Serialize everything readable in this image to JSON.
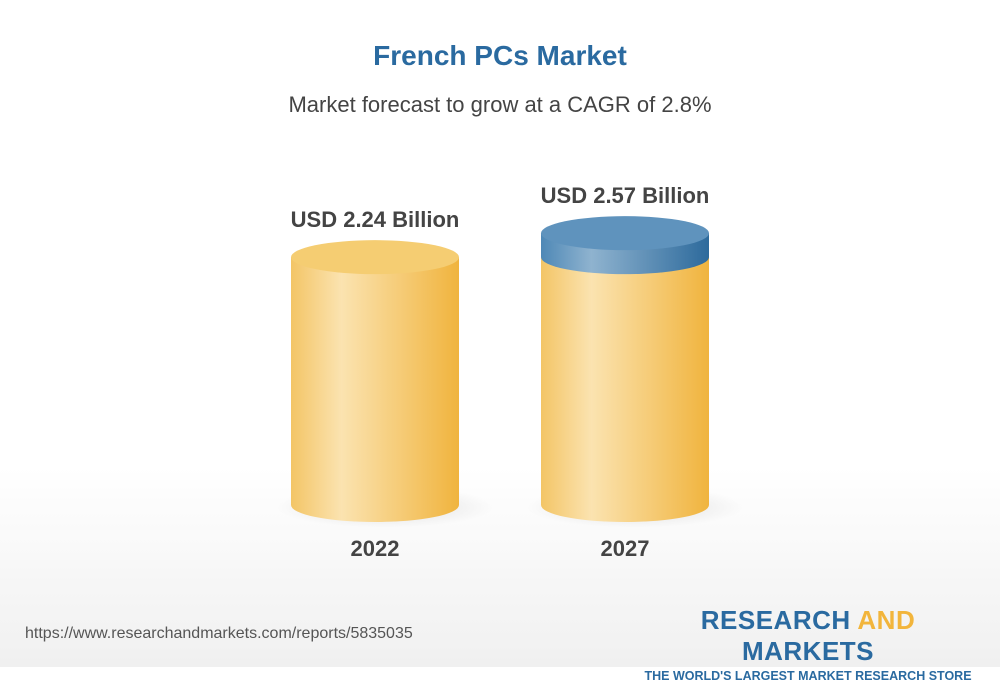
{
  "title": "French PCs Market",
  "subtitle": "Market forecast to grow at a CAGR of 2.8%",
  "chart_data": {
    "type": "bar",
    "categories": [
      "2022",
      "2027"
    ],
    "values": [
      2.24,
      2.57
    ],
    "data_labels": [
      "USD 2.24 Billion",
      "USD 2.57 Billion"
    ],
    "unit": "USD Billion",
    "colors": {
      "base": "#f2c158",
      "growth": "#3f7fb0"
    }
  },
  "footer": {
    "url": "https://www.researchandmarkets.com/reports/5835035",
    "logo_part1": "RESEARCH ",
    "logo_part2": "AND",
    "logo_part3": " MARKETS",
    "tagline": "THE WORLD'S LARGEST MARKET RESEARCH STORE"
  }
}
